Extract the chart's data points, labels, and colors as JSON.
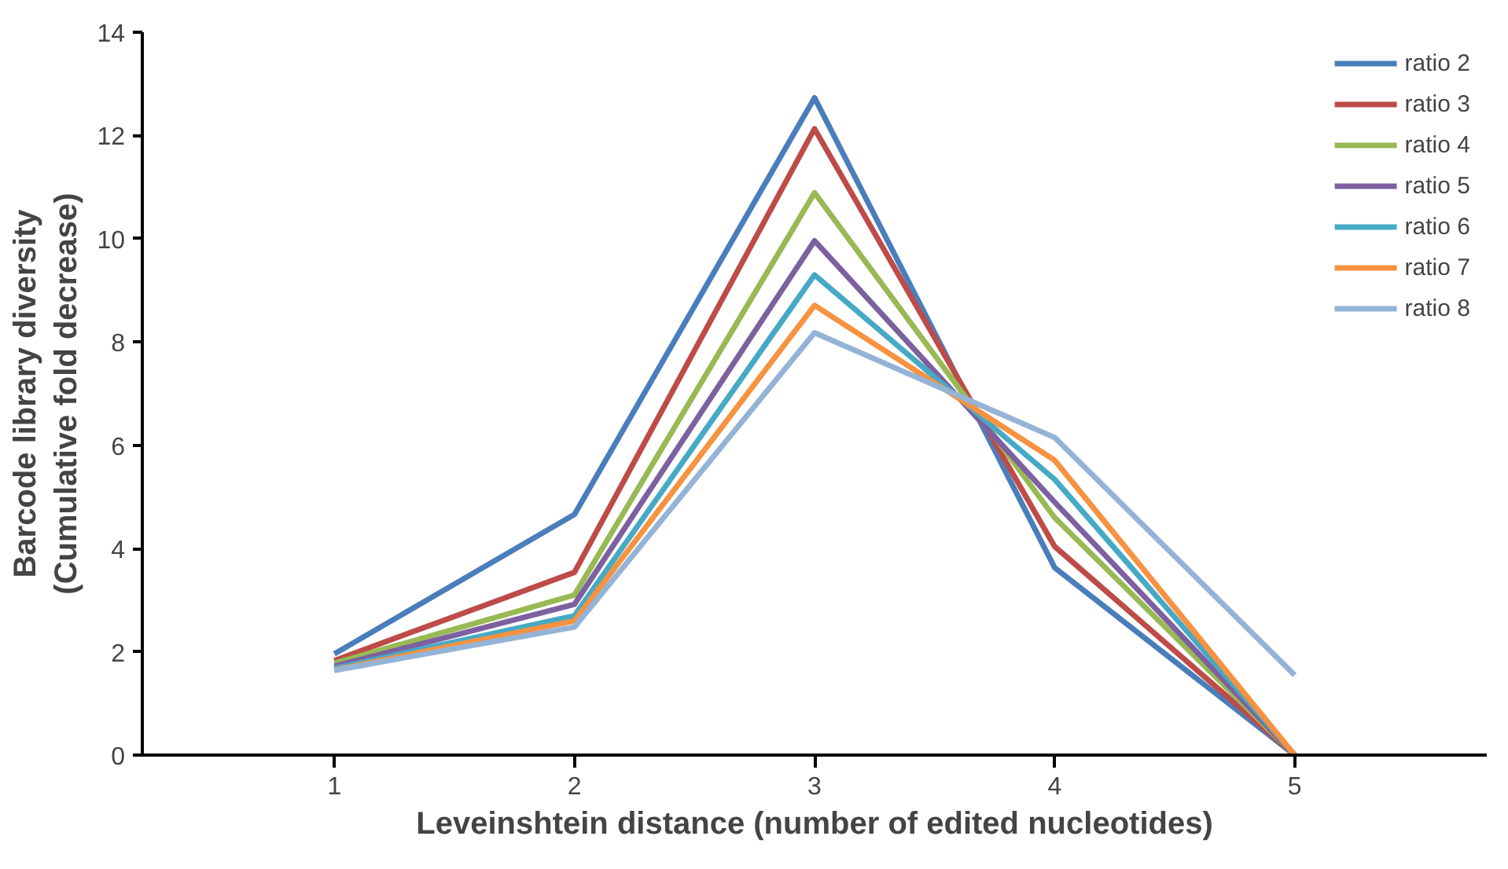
{
  "chart_data": {
    "type": "line",
    "xlabel": "Leveinshtein distance (number of edited nucleotides)",
    "ylabel": "Barcode library diversity\n(Cumulative fold decrease)",
    "categories": [
      "1",
      "2",
      "3",
      "4",
      "5"
    ],
    "ylim": [
      0,
      14
    ],
    "yticks": [
      0,
      2,
      4,
      6,
      8,
      10,
      12,
      14
    ],
    "grid": false,
    "legend": "top right",
    "marker": "none",
    "line_style": "solid",
    "series": [
      {
        "name": "ratio 2",
        "color": "#4a7ebb",
        "values": [
          1.96,
          4.66,
          12.73,
          3.63,
          0
        ]
      },
      {
        "name": "ratio 3",
        "color": "#be4b48",
        "values": [
          1.83,
          3.54,
          12.13,
          4.04,
          0
        ]
      },
      {
        "name": "ratio 4",
        "color": "#98b954",
        "values": [
          1.78,
          3.1,
          10.89,
          4.6,
          0
        ]
      },
      {
        "name": "ratio 5",
        "color": "#7d60a0",
        "values": [
          1.72,
          2.92,
          9.96,
          4.9,
          0
        ]
      },
      {
        "name": "ratio 6",
        "color": "#46aac5",
        "values": [
          1.68,
          2.7,
          9.3,
          5.34,
          0
        ]
      },
      {
        "name": "ratio 7",
        "color": "#f69240",
        "values": [
          1.65,
          2.6,
          8.71,
          5.71,
          0
        ]
      },
      {
        "name": "ratio 8",
        "color": "#94b3d6",
        "values": [
          1.64,
          2.48,
          8.18,
          6.15,
          1.55
        ]
      }
    ]
  }
}
